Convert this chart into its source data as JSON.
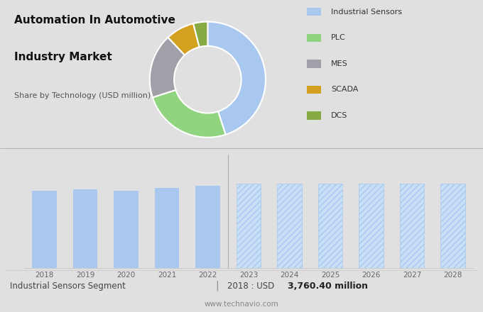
{
  "title_line1": "Automation In Automotive",
  "title_line2": "Industry Market",
  "subtitle": "Share by Technology (USD million)",
  "donut_labels": [
    "Industrial Sensors",
    "PLC",
    "MES",
    "SCADA",
    "DCS"
  ],
  "donut_values": [
    45,
    25,
    18,
    8,
    4
  ],
  "donut_colors": [
    "#a8c8f0",
    "#90d480",
    "#a0a0a8",
    "#d4a020",
    "#88aa44"
  ],
  "bar_years_solid": [
    2018,
    2019,
    2020,
    2021,
    2022
  ],
  "bar_values_solid": [
    3760,
    3820,
    3750,
    3870,
    3980
  ],
  "bar_years_hatched": [
    2023,
    2024,
    2025,
    2026,
    2027,
    2028
  ],
  "bar_values_hatched": [
    4100,
    4100,
    4100,
    4100,
    4100,
    4100
  ],
  "bar_color_solid": "#a8c8f0",
  "bar_hatch_face": "#c8dff5",
  "bar_hatch_edge": "#a8c8f0",
  "bg_color_top": "#e0e0e0",
  "bg_color_bar": "#e8e8e8",
  "bg_color_bottom": "#ffffff",
  "footer_left": "Industrial Sensors Segment",
  "footer_sep": "|",
  "footer_normal": "2018 : USD ",
  "footer_bold": "3,760.40 million",
  "footer_url": "www.technavio.com",
  "ylim_bar": [
    0,
    5500
  ],
  "divider_color": "#aaaaaa",
  "grid_color": "#cccccc",
  "tick_color": "#666666"
}
